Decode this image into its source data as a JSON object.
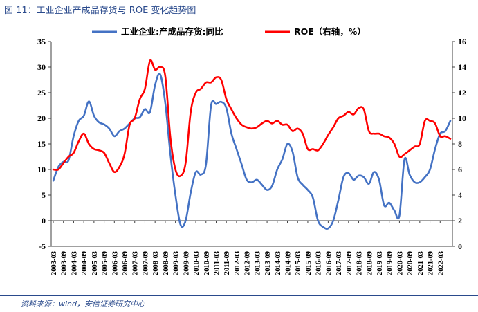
{
  "figure": {
    "title": "图 11：工业企业产成品存货与 ROE 变化趋势图",
    "source": "资料来源：wind，安信证券研究中心"
  },
  "chart_data": {
    "type": "line",
    "left_axis": {
      "ylim": [
        -5,
        35
      ],
      "ticks": [
        -5,
        0,
        5,
        10,
        15,
        20,
        25,
        30,
        35
      ]
    },
    "right_axis": {
      "ylim": [
        0,
        16
      ],
      "ticks": [
        0,
        2,
        4,
        6,
        8,
        10,
        12,
        14,
        16
      ]
    },
    "x_ticks": [
      "2003-03",
      "2003-09",
      "2004-03",
      "2004-09",
      "2005-03",
      "2005-09",
      "2006-03",
      "2006-09",
      "2007-03",
      "2007-09",
      "2008-03",
      "2008-09",
      "2009-03",
      "2009-09",
      "2010-03",
      "2010-09",
      "2011-03",
      "2011-09",
      "2012-03",
      "2012-09",
      "2013-03",
      "2013-09",
      "2014-03",
      "2014-09",
      "2015-03",
      "2015-09",
      "2016-03",
      "2016-09",
      "2017-03",
      "2017-09",
      "2018-03",
      "2018-09",
      "2019-03",
      "2019-09",
      "2020-03",
      "2020-09",
      "2021-03",
      "2021-09",
      "2022-03"
    ],
    "legend_position": "top",
    "grid": false,
    "series": [
      {
        "name": "工业企业:产成品存货:同比",
        "axis": "left",
        "color": "#4472C4",
        "points": [
          [
            "2003-03",
            7.8
          ],
          [
            "2003-06",
            10.5
          ],
          [
            "2003-09",
            11.5
          ],
          [
            "2003-12",
            11.8
          ],
          [
            "2004-03",
            16.5
          ],
          [
            "2004-06",
            19.5
          ],
          [
            "2004-09",
            20.5
          ],
          [
            "2004-12",
            23.3
          ],
          [
            "2005-03",
            20.5
          ],
          [
            "2005-06",
            19.2
          ],
          [
            "2005-09",
            18.8
          ],
          [
            "2005-12",
            18.0
          ],
          [
            "2006-03",
            16.5
          ],
          [
            "2006-06",
            17.5
          ],
          [
            "2006-09",
            18.0
          ],
          [
            "2006-12",
            19.0
          ],
          [
            "2007-03",
            20.0
          ],
          [
            "2007-06",
            20.2
          ],
          [
            "2007-09",
            21.8
          ],
          [
            "2007-12",
            21.2
          ],
          [
            "2008-03",
            26.5
          ],
          [
            "2008-06",
            28.6
          ],
          [
            "2008-09",
            23.0
          ],
          [
            "2008-12",
            13.0
          ],
          [
            "2009-03",
            5.0
          ],
          [
            "2009-06",
            -0.8
          ],
          [
            "2009-09",
            0.0
          ],
          [
            "2009-12",
            5.5
          ],
          [
            "2010-03",
            9.5
          ],
          [
            "2010-06",
            9.0
          ],
          [
            "2010-09",
            11.0
          ],
          [
            "2010-12",
            22.5
          ],
          [
            "2011-03",
            22.8
          ],
          [
            "2011-06",
            23.2
          ],
          [
            "2011-09",
            22.0
          ],
          [
            "2011-12",
            17.0
          ],
          [
            "2012-03",
            14.0
          ],
          [
            "2012-06",
            11.0
          ],
          [
            "2012-09",
            8.0
          ],
          [
            "2012-12",
            7.5
          ],
          [
            "2013-03",
            8.0
          ],
          [
            "2013-06",
            7.0
          ],
          [
            "2013-09",
            6.0
          ],
          [
            "2013-12",
            6.8
          ],
          [
            "2014-03",
            10.0
          ],
          [
            "2014-06",
            12.0
          ],
          [
            "2014-09",
            15.0
          ],
          [
            "2014-12",
            13.5
          ],
          [
            "2015-03",
            8.5
          ],
          [
            "2015-06",
            7.0
          ],
          [
            "2015-09",
            6.0
          ],
          [
            "2015-12",
            4.5
          ],
          [
            "2016-03",
            0.0
          ],
          [
            "2016-06",
            -1.2
          ],
          [
            "2016-09",
            -1.5
          ],
          [
            "2016-12",
            0.0
          ],
          [
            "2017-03",
            4.0
          ],
          [
            "2017-06",
            8.5
          ],
          [
            "2017-09",
            9.3
          ],
          [
            "2017-12",
            8.0
          ],
          [
            "2018-03",
            8.8
          ],
          [
            "2018-06",
            8.5
          ],
          [
            "2018-09",
            7.2
          ],
          [
            "2018-12",
            9.5
          ],
          [
            "2019-03",
            8.0
          ],
          [
            "2019-06",
            3.0
          ],
          [
            "2019-09",
            3.5
          ],
          [
            "2019-12",
            2.0
          ],
          [
            "2020-03",
            1.0
          ],
          [
            "2020-06",
            12.0
          ],
          [
            "2020-09",
            9.0
          ],
          [
            "2020-12",
            7.5
          ],
          [
            "2021-03",
            7.5
          ],
          [
            "2021-06",
            8.5
          ],
          [
            "2021-09",
            10.0
          ],
          [
            "2021-12",
            14.0
          ],
          [
            "2022-03",
            17.0
          ],
          [
            "2022-06",
            17.5
          ],
          [
            "2022-09",
            19.5
          ]
        ]
      },
      {
        "name": "ROE（右轴，%）",
        "axis": "right",
        "color": "#FF0000",
        "points": [
          [
            "2003-03",
            6.0
          ],
          [
            "2003-06",
            6.0
          ],
          [
            "2003-09",
            6.5
          ],
          [
            "2003-12",
            7.0
          ],
          [
            "2004-03",
            7.3
          ],
          [
            "2004-06",
            8.2
          ],
          [
            "2004-09",
            8.8
          ],
          [
            "2004-12",
            8.0
          ],
          [
            "2005-03",
            7.6
          ],
          [
            "2005-06",
            7.5
          ],
          [
            "2005-09",
            7.3
          ],
          [
            "2005-12",
            6.5
          ],
          [
            "2006-03",
            5.8
          ],
          [
            "2006-06",
            6.2
          ],
          [
            "2006-09",
            7.2
          ],
          [
            "2006-12",
            9.5
          ],
          [
            "2007-03",
            10.0
          ],
          [
            "2007-06",
            11.5
          ],
          [
            "2007-09",
            12.3
          ],
          [
            "2007-12",
            14.5
          ],
          [
            "2008-03",
            13.8
          ],
          [
            "2008-06",
            14.0
          ],
          [
            "2008-09",
            13.3
          ],
          [
            "2008-12",
            8.5
          ],
          [
            "2009-03",
            6.0
          ],
          [
            "2009-06",
            5.5
          ],
          [
            "2009-09",
            6.5
          ],
          [
            "2009-12",
            10.5
          ],
          [
            "2010-03",
            12.0
          ],
          [
            "2010-06",
            12.3
          ],
          [
            "2010-09",
            12.8
          ],
          [
            "2010-12",
            12.8
          ],
          [
            "2011-03",
            13.2
          ],
          [
            "2011-06",
            13.0
          ],
          [
            "2011-09",
            11.5
          ],
          [
            "2011-12",
            10.7
          ],
          [
            "2012-03",
            10.0
          ],
          [
            "2012-06",
            9.5
          ],
          [
            "2012-09",
            9.3
          ],
          [
            "2012-12",
            9.2
          ],
          [
            "2013-03",
            9.3
          ],
          [
            "2013-06",
            9.6
          ],
          [
            "2013-09",
            9.8
          ],
          [
            "2013-12",
            9.6
          ],
          [
            "2014-03",
            9.8
          ],
          [
            "2014-06",
            9.5
          ],
          [
            "2014-09",
            9.5
          ],
          [
            "2014-12",
            9.0
          ],
          [
            "2015-03",
            9.2
          ],
          [
            "2015-06",
            8.8
          ],
          [
            "2015-09",
            7.6
          ],
          [
            "2015-12",
            7.6
          ],
          [
            "2016-03",
            7.5
          ],
          [
            "2016-06",
            8.0
          ],
          [
            "2016-09",
            8.7
          ],
          [
            "2016-12",
            9.3
          ],
          [
            "2017-03",
            10.0
          ],
          [
            "2017-06",
            10.2
          ],
          [
            "2017-09",
            10.5
          ],
          [
            "2017-12",
            10.3
          ],
          [
            "2018-03",
            10.8
          ],
          [
            "2018-06",
            10.7
          ],
          [
            "2018-09",
            9.0
          ],
          [
            "2018-12",
            8.8
          ],
          [
            "2019-03",
            8.8
          ],
          [
            "2019-06",
            8.6
          ],
          [
            "2019-09",
            8.5
          ],
          [
            "2019-12",
            8.0
          ],
          [
            "2020-03",
            7.0
          ],
          [
            "2020-06",
            7.2
          ],
          [
            "2020-09",
            7.5
          ],
          [
            "2020-12",
            7.8
          ],
          [
            "2021-03",
            8.0
          ],
          [
            "2021-06",
            9.8
          ],
          [
            "2021-09",
            9.8
          ],
          [
            "2021-12",
            9.6
          ],
          [
            "2022-03",
            8.6
          ],
          [
            "2022-06",
            8.6
          ],
          [
            "2022-09",
            8.4
          ]
        ]
      }
    ]
  }
}
